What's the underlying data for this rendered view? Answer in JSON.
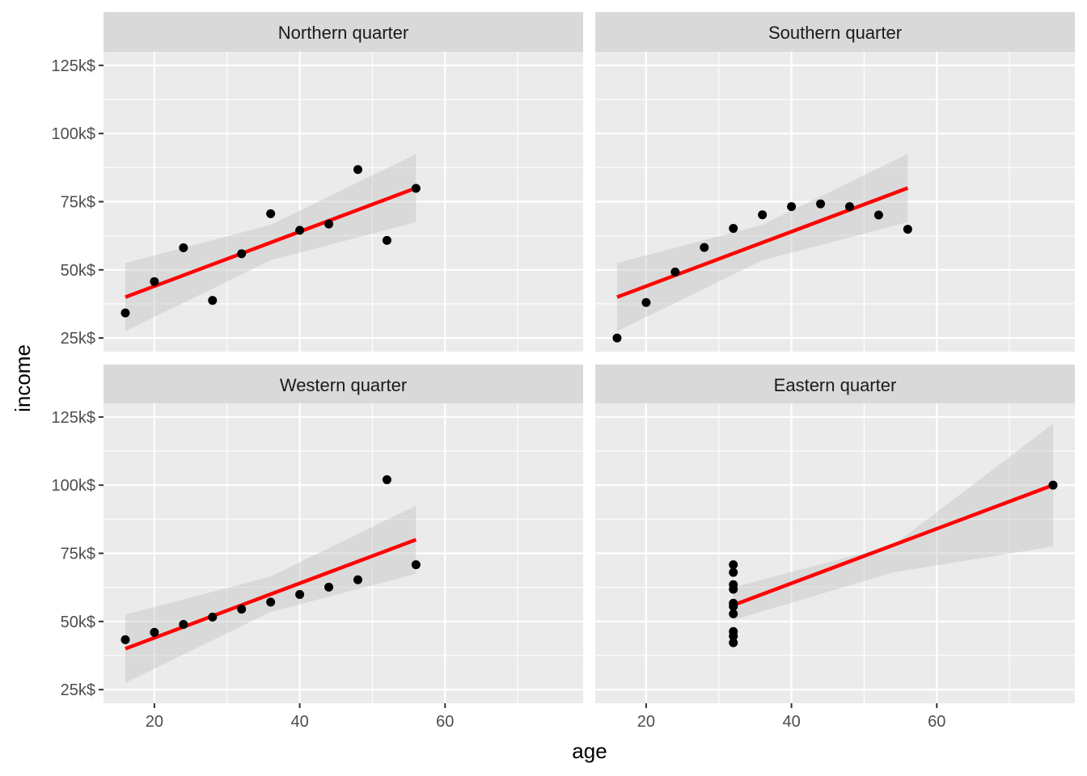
{
  "chart_data": {
    "type": "scatter",
    "layout": "facet-grid-2x2",
    "xlabel": "age",
    "ylabel": "income",
    "xlim": [
      13,
      79
    ],
    "ylim": [
      20000,
      130000
    ],
    "x_ticks": [
      20,
      40,
      60
    ],
    "y_ticks": [
      {
        "value": 25000,
        "label": "25k$"
      },
      {
        "value": 50000,
        "label": "50k$"
      },
      {
        "value": 75000,
        "label": "75k$"
      },
      {
        "value": 100000,
        "label": "100k$"
      },
      {
        "value": 125000,
        "label": "125k$"
      }
    ],
    "grid": true,
    "point_color": "#000000",
    "fit_color": "#ff0000",
    "band_color": "#bfbfbf",
    "panel_bg": "#ebebeb",
    "strip_bg": "#d9d9d9",
    "panels": [
      {
        "title": "Northern quarter",
        "x": [
          16,
          20,
          24,
          28,
          32,
          36,
          40,
          44,
          48,
          52,
          56
        ],
        "y": [
          34200,
          45700,
          58100,
          38800,
          55900,
          70600,
          64500,
          66800,
          86800,
          60800,
          79900
        ],
        "fit": {
          "x": [
            16,
            56
          ],
          "y": [
            40000,
            80000
          ]
        },
        "band": {
          "x": [
            16,
            36,
            56
          ],
          "lower": [
            27500,
            53500,
            67500
          ],
          "upper": [
            52500,
            66500,
            92500
          ]
        }
      },
      {
        "title": "Southern quarter",
        "x": [
          16,
          20,
          24,
          28,
          32,
          36,
          40,
          44,
          48,
          52,
          56
        ],
        "y": [
          25000,
          38000,
          49200,
          58200,
          65200,
          70200,
          73200,
          74200,
          73200,
          70100,
          64900
        ],
        "fit": {
          "x": [
            16,
            56
          ],
          "y": [
            40000,
            80000
          ]
        },
        "band": {
          "x": [
            16,
            36,
            56
          ],
          "lower": [
            27500,
            53500,
            67500
          ],
          "upper": [
            52500,
            66500,
            92500
          ]
        }
      },
      {
        "title": "Western quarter",
        "x": [
          16,
          20,
          24,
          28,
          32,
          36,
          40,
          44,
          48,
          52,
          56
        ],
        "y": [
          43300,
          46000,
          48900,
          51600,
          54500,
          57100,
          59900,
          62600,
          65300,
          102000,
          70800
        ],
        "fit": {
          "x": [
            16,
            56
          ],
          "y": [
            40000,
            80000
          ]
        },
        "band": {
          "x": [
            16,
            36,
            56
          ],
          "lower": [
            27500,
            53500,
            67500
          ],
          "upper": [
            52500,
            66500,
            92500
          ]
        }
      },
      {
        "title": "Eastern quarter",
        "x": [
          32,
          32,
          32,
          32,
          32,
          32,
          32,
          32,
          32,
          32,
          76
        ],
        "y": [
          42200,
          44600,
          46300,
          52800,
          55500,
          56700,
          61800,
          63500,
          68000,
          70800,
          100000
        ],
        "fit": {
          "x": [
            32,
            76
          ],
          "y": [
            56000,
            100000
          ]
        },
        "band": {
          "x": [
            32,
            54,
            76
          ],
          "lower": [
            50500,
            68000,
            77500
          ],
          "upper": [
            62500,
            78000,
            122500
          ]
        }
      }
    ]
  }
}
